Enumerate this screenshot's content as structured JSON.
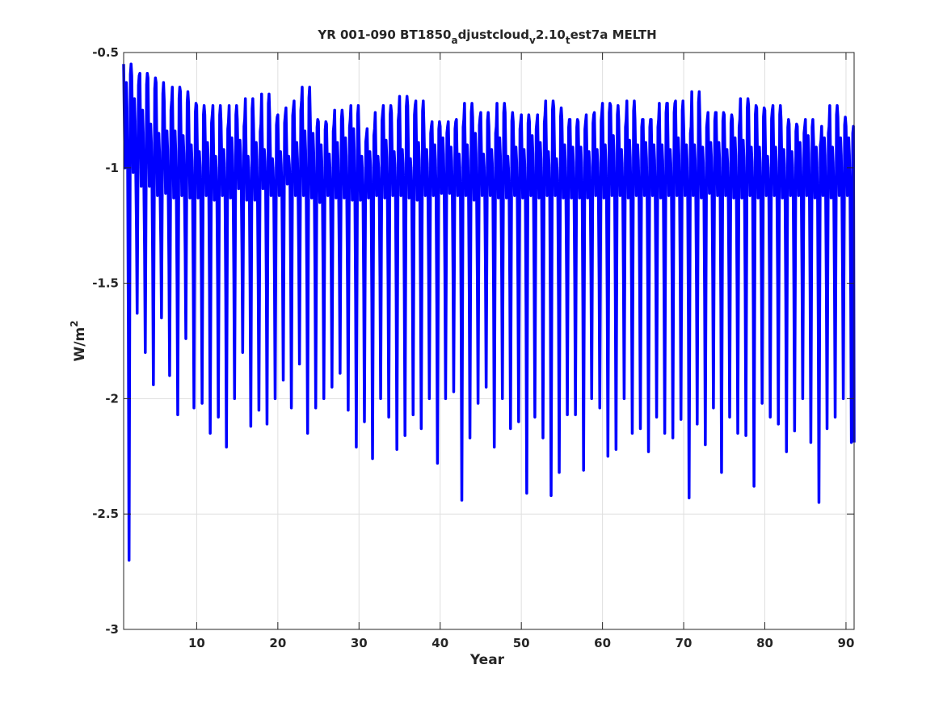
{
  "chart_data": {
    "type": "line",
    "title_parts": [
      {
        "text": "YR 001-090 BT1850",
        "sub": false
      },
      {
        "text": "a",
        "sub": true
      },
      {
        "text": "djustcloud",
        "sub": false
      },
      {
        "text": "v",
        "sub": true
      },
      {
        "text": "2.10",
        "sub": false
      },
      {
        "text": "t",
        "sub": true
      },
      {
        "text": "est7a MELTH",
        "sub": false
      }
    ],
    "xlabel": "Year",
    "ylabel": "W/m",
    "ylabel_superscript": "2",
    "xlim": [
      1,
      91
    ],
    "ylim": [
      -3,
      -0.5
    ],
    "xticks": [
      10,
      20,
      30,
      40,
      50,
      60,
      70,
      80,
      90
    ],
    "xtick_labels": [
      "10",
      "20",
      "30",
      "40",
      "50",
      "60",
      "70",
      "80",
      "90"
    ],
    "yticks": [
      -0.5,
      -1,
      -1.5,
      -2,
      -2.5,
      -3
    ],
    "ytick_labels": [
      "-0.5",
      "-1",
      "-1.5",
      "-2",
      "-2.5",
      "-3"
    ],
    "grid": true,
    "line_color": "#0000ff",
    "samples_per_year": 12,
    "annual_peak1": [
      -0.55,
      -0.6,
      -0.59,
      -0.61,
      -0.63,
      -0.71,
      -0.65,
      -0.67,
      -0.72,
      -0.73,
      -0.77,
      -0.73,
      -0.8,
      -0.73,
      -0.79,
      -0.7,
      -0.81,
      -0.68,
      -0.78,
      -0.77,
      -0.74,
      -0.71,
      -0.65,
      -0.79,
      -0.8,
      -0.81,
      -0.75,
      -0.79,
      -0.73,
      -0.86,
      -0.83,
      -0.76,
      -0.73,
      -0.76,
      -0.69,
      -0.73,
      -0.71,
      -0.82,
      -0.8,
      -0.82,
      -0.8,
      -0.79,
      -0.72,
      -0.78,
      -0.76,
      -0.82,
      -0.72,
      -0.76,
      -0.8,
      -0.77,
      -0.8,
      -0.77,
      -0.71,
      -0.74,
      -0.79,
      -0.79,
      -0.8,
      -0.77,
      -0.76,
      -0.72,
      -0.73,
      -0.79,
      -0.71,
      -0.79,
      -0.79,
      -0.79,
      -0.72,
      -0.72,
      -0.71,
      -0.82,
      -0.67,
      -0.79,
      -0.76,
      -0.76,
      -0.77,
      -0.79,
      -0.7,
      -0.73,
      -0.74,
      -0.75,
      -0.73,
      -0.79,
      -0.81,
      -0.82,
      -0.79,
      -0.88,
      -0.82,
      -0.73,
      -0.78,
      -0.82
    ],
    "annual_peak2": [
      -0.63,
      -0.7,
      -0.75,
      -0.81,
      -0.85,
      -0.84,
      -0.84,
      -0.86,
      -0.9,
      -0.93,
      -0.89,
      -0.95,
      -0.92,
      -0.87,
      -0.88,
      -0.95,
      -0.89,
      -0.92,
      -0.96,
      -0.93,
      -0.95,
      -0.89,
      -0.84,
      -0.85,
      -0.9,
      -0.94,
      -0.89,
      -0.87,
      -0.83,
      -0.95,
      -0.93,
      -0.95,
      -0.88,
      -0.93,
      -0.92,
      -0.96,
      -0.89,
      -0.92,
      -0.9,
      -0.87,
      -0.91,
      -0.94,
      -0.9,
      -0.85,
      -0.94,
      -0.92,
      -0.87,
      -0.95,
      -0.91,
      -0.92,
      -0.86,
      -0.89,
      -0.93,
      -0.96,
      -0.9,
      -0.91,
      -0.91,
      -0.93,
      -0.92,
      -0.9,
      -0.86,
      -0.92,
      -0.88,
      -0.9,
      -0.89,
      -0.9,
      -0.9,
      -0.92,
      -0.87,
      -0.9,
      -0.9,
      -0.91,
      -0.89,
      -0.89,
      -0.92,
      -0.87,
      -0.88,
      -0.91,
      -0.91,
      -0.95,
      -0.91,
      -0.92,
      -0.93,
      -0.89,
      -0.86,
      -0.91,
      -0.87,
      -0.91,
      -0.87,
      -0.87
    ],
    "annual_shallow_min": [
      -1.0,
      -1.02,
      -1.08,
      -1.08,
      -1.12,
      -1.11,
      -1.13,
      -1.12,
      -1.13,
      -1.13,
      -1.12,
      -1.14,
      -1.12,
      -1.13,
      -1.09,
      -1.14,
      -1.14,
      -1.09,
      -1.12,
      -1.12,
      -1.07,
      -1.12,
      -1.12,
      -1.13,
      -1.15,
      -1.12,
      -1.13,
      -1.13,
      -1.14,
      -1.14,
      -1.13,
      -1.12,
      -1.13,
      -1.12,
      -1.12,
      -1.13,
      -1.14,
      -1.12,
      -1.12,
      -1.11,
      -1.11,
      -1.12,
      -1.12,
      -1.14,
      -1.12,
      -1.12,
      -1.13,
      -1.13,
      -1.12,
      -1.13,
      -1.12,
      -1.13,
      -1.12,
      -1.12,
      -1.13,
      -1.13,
      -1.13,
      -1.13,
      -1.12,
      -1.13,
      -1.12,
      -1.12,
      -1.13,
      -1.12,
      -1.12,
      -1.12,
      -1.13,
      -1.12,
      -1.12,
      -1.12,
      -1.12,
      -1.13,
      -1.11,
      -1.12,
      -1.12,
      -1.13,
      -1.13,
      -1.12,
      -1.13,
      -1.12,
      -1.12,
      -1.13,
      -1.12,
      -1.12,
      -1.12,
      -1.13,
      -1.12,
      -1.13,
      -1.12,
      -1.12
    ],
    "annual_trough": [
      -2.7,
      -1.63,
      -1.8,
      -1.94,
      -1.65,
      -1.9,
      -2.07,
      -1.74,
      -2.04,
      -2.02,
      -2.15,
      -2.08,
      -2.21,
      -2.0,
      -1.8,
      -2.12,
      -2.05,
      -2.11,
      -2.0,
      -1.92,
      -2.04,
      -1.85,
      -2.15,
      -2.04,
      -2.0,
      -1.95,
      -1.89,
      -2.05,
      -2.21,
      -2.1,
      -2.26,
      -2.0,
      -2.08,
      -2.22,
      -2.16,
      -2.07,
      -2.13,
      -2.0,
      -2.28,
      -2.0,
      -1.97,
      -2.44,
      -2.17,
      -2.02,
      -1.95,
      -2.21,
      -2.0,
      -2.13,
      -2.1,
      -2.41,
      -2.08,
      -2.17,
      -2.42,
      -2.32,
      -2.07,
      -2.07,
      -2.31,
      -2.0,
      -2.04,
      -2.25,
      -2.22,
      -2.0,
      -2.15,
      -2.13,
      -2.23,
      -2.08,
      -2.15,
      -2.17,
      -2.09,
      -2.43,
      -2.11,
      -2.2,
      -2.04,
      -2.32,
      -2.08,
      -2.15,
      -2.16,
      -2.38,
      -2.02,
      -2.08,
      -2.11,
      -2.23,
      -2.14,
      -2.0,
      -2.19,
      -2.45,
      -2.13,
      -2.08,
      -2.0,
      -2.19
    ]
  }
}
